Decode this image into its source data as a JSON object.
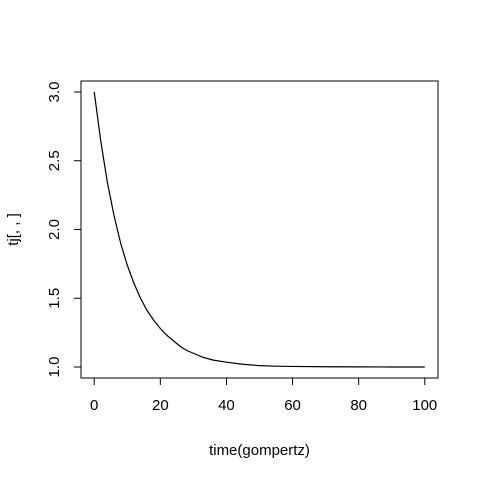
{
  "chart_data": {
    "type": "line",
    "title": "",
    "xlabel": "time(gompertz)",
    "ylabel": "tj[, , ]",
    "xlim": [
      -4,
      104
    ],
    "ylim": [
      0.92,
      3.08
    ],
    "xticks": [
      0,
      20,
      40,
      60,
      80,
      100
    ],
    "yticks": [
      1.0,
      1.5,
      2.0,
      2.5,
      3.0
    ],
    "xtick_labels": [
      "0",
      "20",
      "40",
      "60",
      "80",
      "100"
    ],
    "ytick_labels": [
      "1.0",
      "1.5",
      "2.0",
      "2.5",
      "3.0"
    ],
    "grid": false,
    "legend": false,
    "series": [
      {
        "x": [
          0,
          2,
          4,
          6,
          8,
          10,
          12,
          14,
          16,
          18,
          20,
          22,
          24,
          26,
          28,
          30,
          33,
          36,
          40,
          45,
          50,
          55,
          60,
          70,
          80,
          90,
          100
        ],
        "y": [
          3.0,
          2.64,
          2.34,
          2.1,
          1.9,
          1.74,
          1.61,
          1.5,
          1.41,
          1.34,
          1.28,
          1.23,
          1.19,
          1.15,
          1.12,
          1.1,
          1.07,
          1.05,
          1.035,
          1.02,
          1.01,
          1.006,
          1.004,
          1.002,
          1.001,
          1.0,
          1.0
        ],
        "color": "#000000"
      }
    ]
  }
}
